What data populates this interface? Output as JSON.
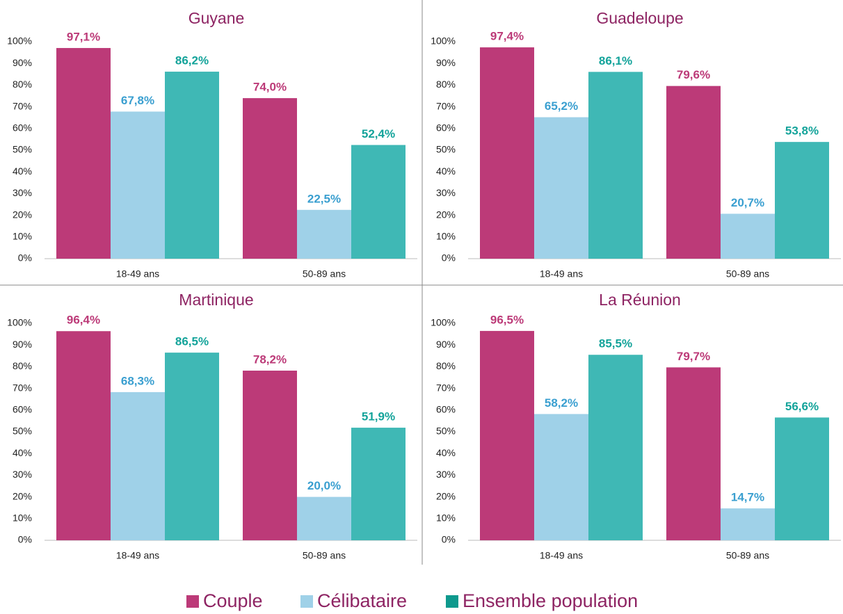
{
  "chart_data": [
    {
      "type": "bar",
      "title": "Guyane",
      "categories": [
        "18-49 ans",
        "50-89 ans"
      ],
      "series": [
        {
          "color": "#bc3a78",
          "label_color": "#bc3a78",
          "values": [
            97.1,
            74.0
          ],
          "value_labels": [
            "97,1%",
            "74,0%"
          ]
        },
        {
          "color": "#9fd1e8",
          "label_color": "#3a9fd0",
          "values": [
            67.8,
            22.5
          ],
          "value_labels": [
            "67,8%",
            "22,5%"
          ]
        },
        {
          "color": "#3fb8b5",
          "label_color": "#13a39a",
          "values": [
            86.2,
            52.4
          ],
          "value_labels": [
            "86,2%",
            "52,4%"
          ]
        }
      ],
      "ylim": [
        0,
        100
      ],
      "yticks": [
        {
          "value": 0,
          "label": "0%"
        },
        {
          "value": 10,
          "label": "10%"
        },
        {
          "value": 20,
          "label": "20%"
        },
        {
          "value": 30,
          "label": "30%"
        },
        {
          "value": 40,
          "label": "40%"
        },
        {
          "value": 50,
          "label": "50%"
        },
        {
          "value": 60,
          "label": "60%"
        },
        {
          "value": 70,
          "label": "70%"
        },
        {
          "value": 80,
          "label": "80%"
        },
        {
          "value": 90,
          "label": "90%"
        },
        {
          "value": 100,
          "label": "100%"
        }
      ]
    },
    {
      "type": "bar",
      "title": "Guadeloupe",
      "categories": [
        "18-49 ans",
        "50-89 ans"
      ],
      "series": [
        {
          "color": "#bc3a78",
          "label_color": "#bc3a78",
          "values": [
            97.4,
            79.6
          ],
          "value_labels": [
            "97,4%",
            "79,6%"
          ]
        },
        {
          "color": "#9fd1e8",
          "label_color": "#3a9fd0",
          "values": [
            65.2,
            20.7
          ],
          "value_labels": [
            "65,2%",
            "20,7%"
          ]
        },
        {
          "color": "#3fb8b5",
          "label_color": "#13a39a",
          "values": [
            86.1,
            53.8
          ],
          "value_labels": [
            "86,1%",
            "53,8%"
          ]
        }
      ],
      "ylim": [
        0,
        100
      ],
      "yticks": [
        {
          "value": 0,
          "label": "0%"
        },
        {
          "value": 10,
          "label": "10%"
        },
        {
          "value": 20,
          "label": "20%"
        },
        {
          "value": 30,
          "label": "30%"
        },
        {
          "value": 40,
          "label": "40%"
        },
        {
          "value": 50,
          "label": "50%"
        },
        {
          "value": 60,
          "label": "60%"
        },
        {
          "value": 70,
          "label": "70%"
        },
        {
          "value": 80,
          "label": "80%"
        },
        {
          "value": 90,
          "label": "90%"
        },
        {
          "value": 100,
          "label": "100%"
        }
      ]
    },
    {
      "type": "bar",
      "title": "Martinique",
      "categories": [
        "18-49 ans",
        "50-89 ans"
      ],
      "series": [
        {
          "color": "#bc3a78",
          "label_color": "#bc3a78",
          "values": [
            96.4,
            78.2
          ],
          "value_labels": [
            "96,4%",
            "78,2%"
          ]
        },
        {
          "color": "#9fd1e8",
          "label_color": "#3a9fd0",
          "values": [
            68.3,
            20.0
          ],
          "value_labels": [
            "68,3%",
            "20,0%"
          ]
        },
        {
          "color": "#3fb8b5",
          "label_color": "#13a39a",
          "values": [
            86.5,
            51.9
          ],
          "value_labels": [
            "86,5%",
            "51,9%"
          ]
        }
      ],
      "ylim": [
        0,
        100
      ],
      "yticks": [
        {
          "value": 0,
          "label": "0%"
        },
        {
          "value": 10,
          "label": "10%"
        },
        {
          "value": 20,
          "label": "20%"
        },
        {
          "value": 30,
          "label": "30%"
        },
        {
          "value": 40,
          "label": "40%"
        },
        {
          "value": 50,
          "label": "50%"
        },
        {
          "value": 60,
          "label": "60%"
        },
        {
          "value": 70,
          "label": "70%"
        },
        {
          "value": 80,
          "label": "80%"
        },
        {
          "value": 90,
          "label": "90%"
        },
        {
          "value": 100,
          "label": "100%"
        }
      ]
    },
    {
      "type": "bar",
      "title": "La Réunion",
      "categories": [
        "18-49 ans",
        "50-89 ans"
      ],
      "series": [
        {
          "color": "#bc3a78",
          "label_color": "#bc3a78",
          "values": [
            96.5,
            79.7
          ],
          "value_labels": [
            "96,5%",
            "79,7%"
          ]
        },
        {
          "color": "#9fd1e8",
          "label_color": "#3a9fd0",
          "values": [
            58.2,
            14.7
          ],
          "value_labels": [
            "58,2%",
            "14,7%"
          ]
        },
        {
          "color": "#3fb8b5",
          "label_color": "#13a39a",
          "values": [
            85.5,
            56.6
          ],
          "value_labels": [
            "85,5%",
            "56,6%"
          ]
        }
      ],
      "ylim": [
        0,
        100
      ],
      "yticks": [
        {
          "value": 0,
          "label": "0%"
        },
        {
          "value": 10,
          "label": "10%"
        },
        {
          "value": 20,
          "label": "20%"
        },
        {
          "value": 30,
          "label": "30%"
        },
        {
          "value": 40,
          "label": "40%"
        },
        {
          "value": 50,
          "label": "50%"
        },
        {
          "value": 60,
          "label": "60%"
        },
        {
          "value": 70,
          "label": "70%"
        },
        {
          "value": 80,
          "label": "80%"
        },
        {
          "value": 90,
          "label": "90%"
        },
        {
          "value": 100,
          "label": "100%"
        }
      ]
    }
  ],
  "legend": {
    "items": [
      {
        "name": "Couple",
        "color": "#bc3a78"
      },
      {
        "name": "Célibataire",
        "color": "#9fd1e8"
      },
      {
        "name": "Ensemble population",
        "color": "#0e998d"
      }
    ]
  }
}
